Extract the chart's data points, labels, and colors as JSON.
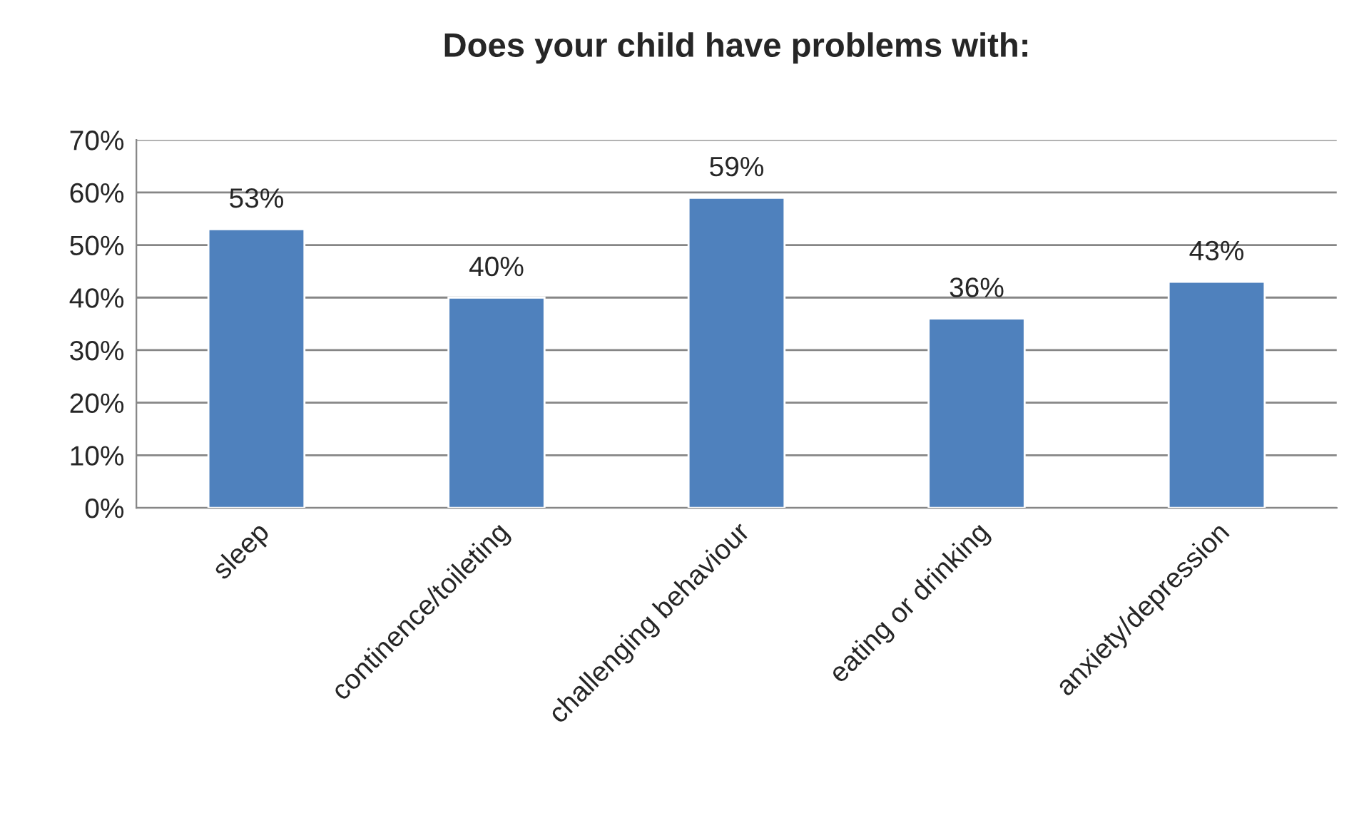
{
  "chart_data": {
    "type": "bar",
    "title": "Does your child have problems with:",
    "categories": [
      "sleep",
      "continence/toileting",
      "challenging behaviour",
      "eating or drinking",
      "anxiety/depression"
    ],
    "values": [
      53,
      40,
      59,
      36,
      43
    ],
    "color": "#4f81bd",
    "value_labels": [
      "53%",
      "40%",
      "59%",
      "36%",
      "43%"
    ],
    "ylim": [
      0,
      70
    ],
    "yticks": [
      {
        "value": 0,
        "label": "0%"
      },
      {
        "value": 10,
        "label": "10%"
      },
      {
        "value": 20,
        "label": "20%"
      },
      {
        "value": 30,
        "label": "30%"
      },
      {
        "value": 40,
        "label": "40%"
      },
      {
        "value": 50,
        "label": "50%"
      },
      {
        "value": 60,
        "label": "60%"
      },
      {
        "value": 70,
        "label": "70%"
      }
    ],
    "grid": "y",
    "legend": false
  }
}
